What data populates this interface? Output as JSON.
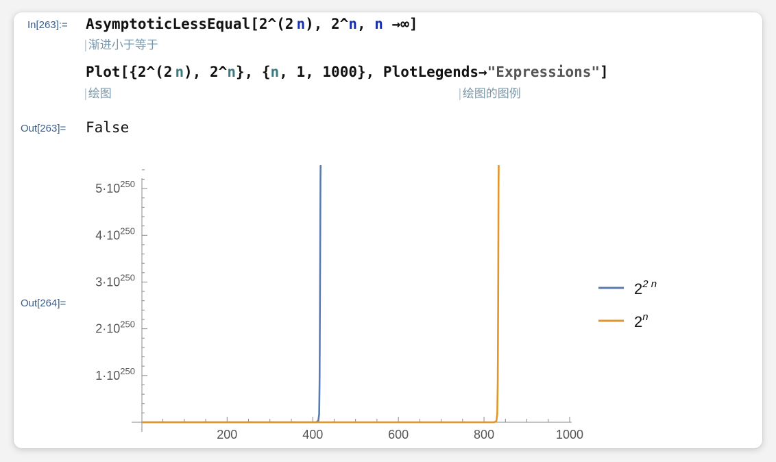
{
  "notebook": {
    "in_label": "In[263]:=",
    "out_label_1": "Out[263]=",
    "out_label_2": "Out[264]=",
    "line1": {
      "fn": "AsymptoticLessEqual",
      "open": "[2^(2",
      "n1": "n",
      "mid": "), 2^",
      "n2": "n",
      "comma": ", ",
      "n3": "n",
      "tail": " →∞]"
    },
    "line1_hint": "渐进小于等于",
    "line2": {
      "fn": "Plot",
      "open": "[{2^(2",
      "n1": "n",
      "mid": "),  2^",
      "n2": "n",
      "mid2": "}, {",
      "n3": "n",
      "range": ", 1, 1000}, ",
      "opt": "PlotLegends",
      "arrow": "→",
      "str": "\"Expressions\"",
      "close": "]"
    },
    "line2_hint_a": "绘图",
    "line2_hint_b": "绘图的图例",
    "output_text": "False",
    "hint_bar": "|"
  },
  "chart_data": {
    "type": "line",
    "x_range": [
      1,
      1000
    ],
    "y_range": [
      0,
      5.5e+250
    ],
    "x_ticks": [
      200,
      400,
      600,
      800,
      1000
    ],
    "y_ticks": [
      {
        "mantissa": "1",
        "base": "10",
        "exp": "250",
        "value": 1e+250
      },
      {
        "mantissa": "2",
        "base": "10",
        "exp": "250",
        "value": 2e+250
      },
      {
        "mantissa": "3",
        "base": "10",
        "exp": "250",
        "value": 3e+250
      },
      {
        "mantissa": "4",
        "base": "10",
        "exp": "250",
        "value": 4e+250
      },
      {
        "mantissa": "5",
        "base": "10",
        "exp": "250",
        "value": 5e+250
      }
    ],
    "series": [
      {
        "name": "2^(2n)",
        "color": "#5b7bb0",
        "blowup_x": 416
      },
      {
        "name": "2^n",
        "color": "#e0962b",
        "blowup_x": 832
      }
    ],
    "legend": [
      {
        "base": "2",
        "sup": "2 n",
        "color": "#5b7bb0"
      },
      {
        "base": "2",
        "sup": "n",
        "color": "#e0962b"
      }
    ],
    "legend_placement": "right"
  }
}
